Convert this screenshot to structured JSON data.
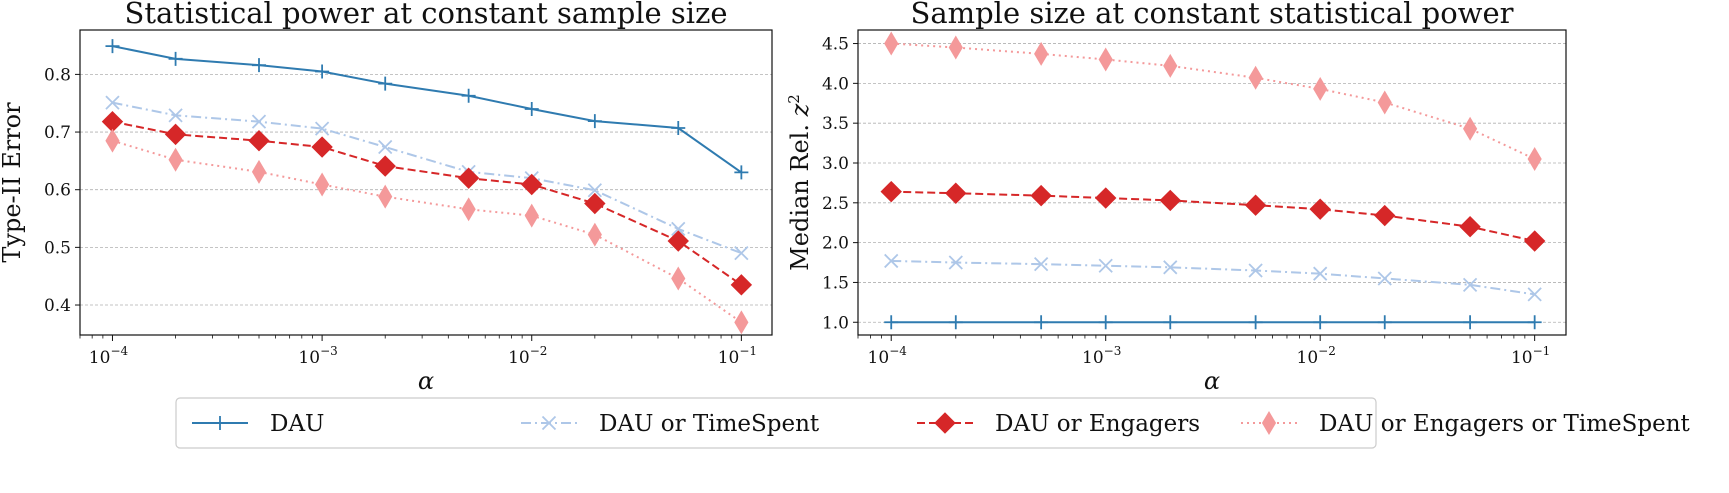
{
  "chart_data": [
    {
      "type": "line",
      "title": "Statistical power at constant sample size",
      "xlabel": "α",
      "ylabel": "Type-II Error",
      "xscale": "log",
      "xlim": [
        7e-05,
        0.14
      ],
      "ylim": [
        0.348,
        0.877
      ],
      "yticks": [
        "0.4",
        "0.5",
        "0.6",
        "0.7",
        "0.8"
      ],
      "ytick_values": [
        0.4,
        0.5,
        0.6,
        0.7,
        0.8
      ],
      "xticks": [
        {
          "base": "10",
          "exp": "−4",
          "value": 0.0001
        },
        {
          "base": "10",
          "exp": "−3",
          "value": 0.001
        },
        {
          "base": "10",
          "exp": "−2",
          "value": 0.01
        },
        {
          "base": "10",
          "exp": "−1",
          "value": 0.1
        }
      ],
      "grid": "horizontal",
      "x": [
        0.0001,
        0.0002,
        0.0005,
        0.001,
        0.002,
        0.005,
        0.01,
        0.02,
        0.05,
        0.1
      ],
      "series": [
        {
          "name": "DAU",
          "values": [
            0.849,
            0.827,
            0.816,
            0.805,
            0.784,
            0.763,
            0.74,
            0.719,
            0.707,
            0.63
          ]
        },
        {
          "name": "DAU or TimeSpent",
          "values": [
            0.751,
            0.729,
            0.718,
            0.706,
            0.674,
            0.631,
            0.62,
            0.599,
            0.532,
            0.49
          ]
        },
        {
          "name": "DAU or Engagers",
          "values": [
            0.718,
            0.696,
            0.685,
            0.674,
            0.641,
            0.62,
            0.609,
            0.576,
            0.511,
            0.435
          ]
        },
        {
          "name": "DAU or Engagers or TimeSpent",
          "values": [
            0.685,
            0.652,
            0.631,
            0.609,
            0.588,
            0.566,
            0.555,
            0.522,
            0.446,
            0.37
          ]
        }
      ]
    },
    {
      "type": "line",
      "title": "Sample size at constant statistical power",
      "xlabel": "α",
      "ylabel_main": "Median Rel. ",
      "ylabel_var": "z",
      "ylabel_sup": "2",
      "xscale": "log",
      "xlim": [
        7e-05,
        0.14
      ],
      "ylim": [
        0.84,
        4.67
      ],
      "yticks": [
        "1.0",
        "1.5",
        "2.0",
        "2.5",
        "3.0",
        "3.5",
        "4.0",
        "4.5"
      ],
      "ytick_values": [
        1.0,
        1.5,
        2.0,
        2.5,
        3.0,
        3.5,
        4.0,
        4.5
      ],
      "xticks": [
        {
          "base": "10",
          "exp": "−4",
          "value": 0.0001
        },
        {
          "base": "10",
          "exp": "−3",
          "value": 0.001
        },
        {
          "base": "10",
          "exp": "−2",
          "value": 0.01
        },
        {
          "base": "10",
          "exp": "−1",
          "value": 0.1
        }
      ],
      "grid": "horizontal",
      "x": [
        0.0001,
        0.0002,
        0.0005,
        0.001,
        0.002,
        0.005,
        0.01,
        0.02,
        0.05,
        0.1
      ],
      "series": [
        {
          "name": "DAU",
          "values": [
            1.0,
            1.0,
            1.0,
            1.0,
            1.0,
            1.0,
            1.0,
            1.0,
            1.0,
            1.0
          ]
        },
        {
          "name": "DAU or TimeSpent",
          "values": [
            1.77,
            1.75,
            1.73,
            1.71,
            1.69,
            1.65,
            1.61,
            1.55,
            1.47,
            1.35
          ]
        },
        {
          "name": "DAU or Engagers",
          "values": [
            2.64,
            2.62,
            2.59,
            2.56,
            2.53,
            2.47,
            2.42,
            2.34,
            2.2,
            2.02
          ]
        },
        {
          "name": "DAU or Engagers or TimeSpent",
          "values": [
            4.5,
            4.45,
            4.37,
            4.3,
            4.22,
            4.07,
            3.93,
            3.76,
            3.43,
            3.05
          ]
        }
      ]
    }
  ],
  "legend": {
    "placement": "bottom-center",
    "items": [
      {
        "label": "DAU",
        "color": "#2f7bb0",
        "marker": "plus",
        "dash": "solid"
      },
      {
        "label": "DAU or TimeSpent",
        "color": "#aec7e8",
        "marker": "x",
        "dash": "dashdot"
      },
      {
        "label": "DAU or Engagers",
        "color": "#d62728",
        "marker": "diamond",
        "dash": "dashed"
      },
      {
        "label": "DAU or Engagers or TimeSpent",
        "color": "#f4999a",
        "marker": "thin-diamond",
        "dash": "dotted"
      }
    ]
  }
}
